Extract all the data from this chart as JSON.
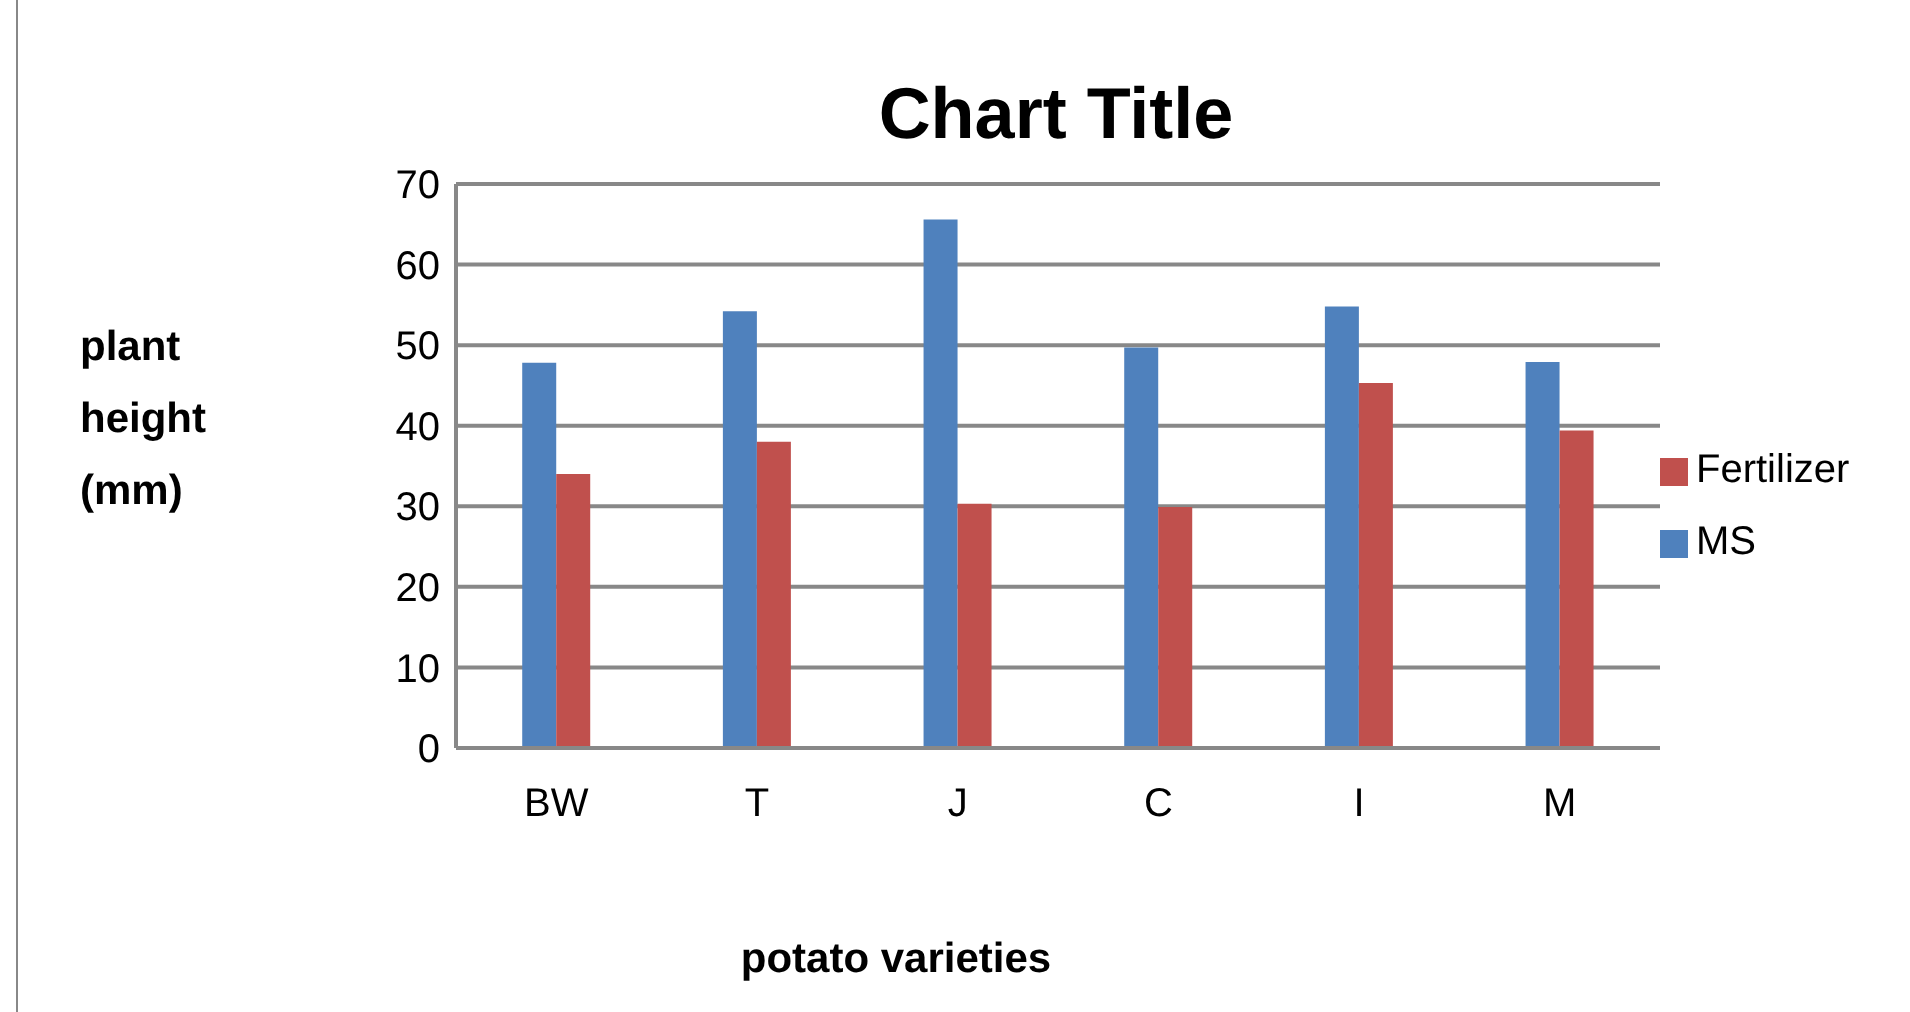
{
  "chart_data": {
    "type": "bar",
    "title": "Chart Title",
    "xlabel": "potato varieties",
    "ylabel": "plant height (mm)",
    "categories": [
      "BW",
      "T",
      "J",
      "C",
      "I",
      "M"
    ],
    "series": [
      {
        "name": "MS",
        "color": "#4f81bd",
        "values": [
          47.8,
          54.2,
          65.6,
          49.7,
          54.8,
          47.9
        ]
      },
      {
        "name": "Fertilizer",
        "color": "#c0504d",
        "values": [
          34.0,
          38.0,
          30.3,
          29.9,
          45.3,
          39.4
        ]
      }
    ],
    "ylim": [
      0,
      70
    ],
    "yticks": [
      0,
      10,
      20,
      30,
      40,
      50,
      60,
      70
    ],
    "grid": "y",
    "legend": "right"
  }
}
